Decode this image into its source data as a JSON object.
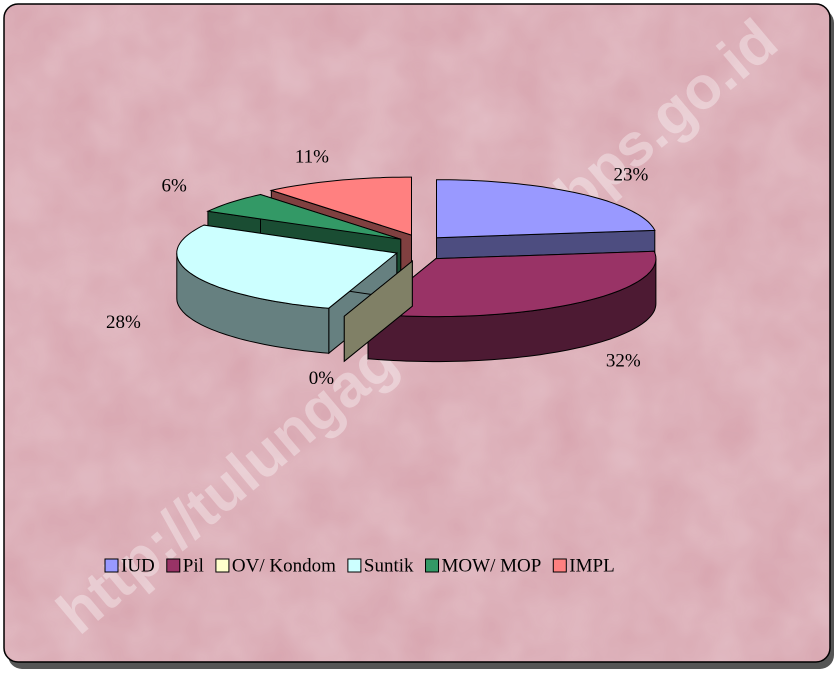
{
  "chart_data": {
    "type": "pie3d",
    "categories": [
      "IUD",
      "Pil",
      "OV/ Kondom",
      "Suntik",
      "MOW/ MOP",
      "IMPL"
    ],
    "values": [
      23,
      32,
      0,
      28,
      6,
      11
    ],
    "value_labels": [
      "23%",
      "32%",
      "0%",
      "28%",
      "6%",
      "11%"
    ],
    "colors": [
      "#9999ff",
      "#993366",
      "#ffffcc",
      "#ccffff",
      "#339966",
      "#ff8080"
    ],
    "legend": "bottom",
    "watermark": "http://tulungagungkab.bps.go.id"
  }
}
